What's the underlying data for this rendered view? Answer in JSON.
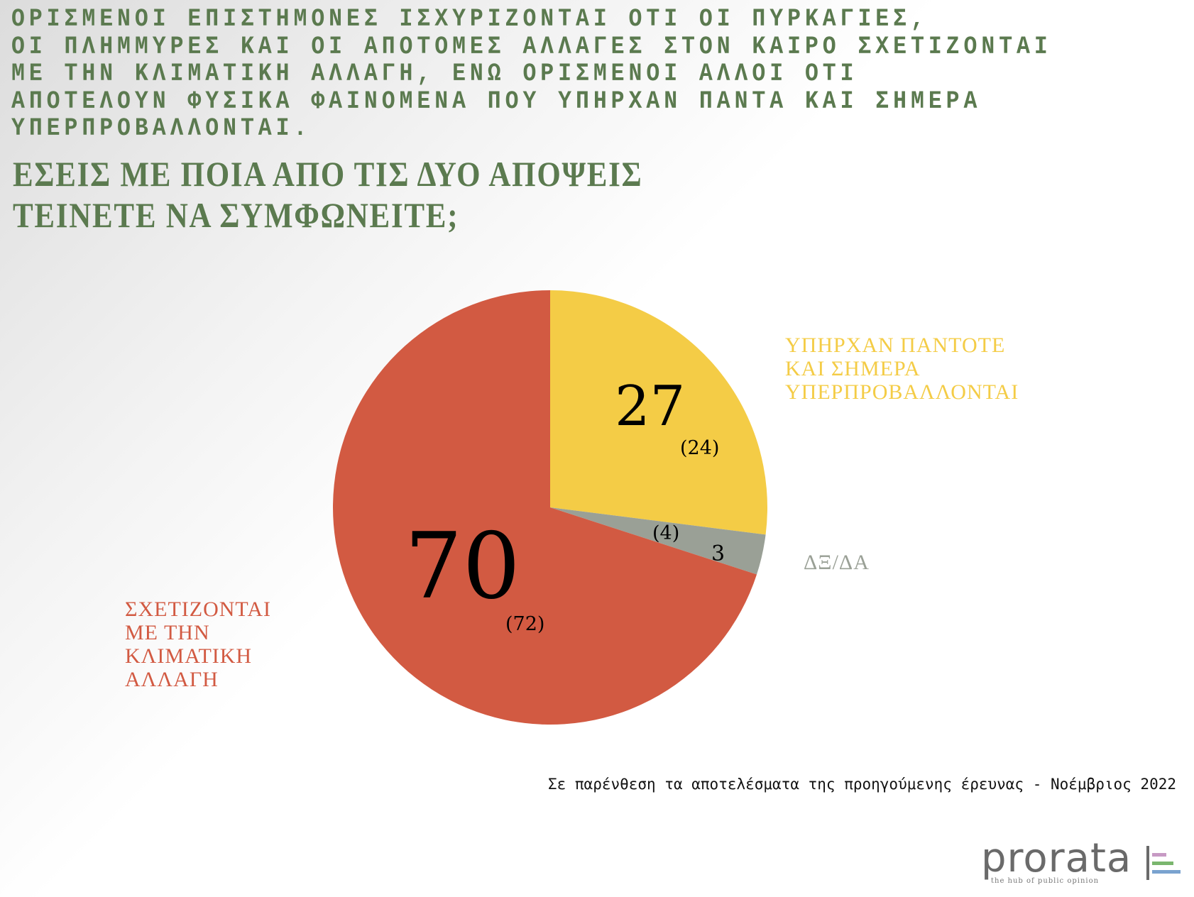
{
  "question_text": "ΟΡΙΣΜΕΝΟΙ ΕΠΙΣΤΗΜΟΝΕΣ ΙΣΧΥΡΙΖΟΝΤΑΙ ΟΤΙ ΟΙ ΠΥΡΚΑΓΙΕΣ,\nΟΙ ΠΛΗΜΜΥΡΕΣ ΚΑΙ ΟΙ ΑΠΟΤΟΜΕΣ ΑΛΛΑΓΕΣ ΣΤΟΝ ΚΑΙΡΟ ΣΧΕΤΙΖΟΝΤΑΙ\nΜΕ ΤΗΝ ΚΛΙΜΑΤΙΚΗ ΑΛΛΑΓΗ, ΕΝΩ ΟΡΙΣΜΕΝΟΙ ΑΛΛΟΙ ΟΤΙ\nΑΠΟΤΕΛΟΥΝ ΦΥΣΙΚΑ ΦΑΙΝΟΜΕΝΑ ΠΟΥ ΥΠΗΡΧΑΝ ΠΑΝΤΑ ΚΑΙ ΣΗΜΕΡΑ\nΥΠΕΡΠΡΟΒΑΛΛΟΝΤΑΙ.",
  "question_ask": "ΕΣΕΙΣ ΜΕ ΠΟΙΑ ΑΠΟ ΤΙΣ ΔΥΟ ΑΠΟΨΕΙΣ\nΤΕΙΝΕΤΕ ΝΑ ΣΥΜΦΩΝΕΙΤΕ;",
  "chart_data": {
    "type": "pie",
    "slices": [
      {
        "label": "ΥΠΗΡΧΑΝ ΠΑΝΤΟΤΕ\nΚΑΙ ΣΗΜΕΡΑ\nΥΠΕΡΠΡΟΒΑΛΛΟΝΤΑΙ",
        "value": 27,
        "value_text": "27",
        "previous": 24,
        "previous_text": "(24)",
        "color": "#f4cc46"
      },
      {
        "label": "ΔΞ/ΔΑ",
        "value": 3,
        "value_text": "3",
        "previous": 4,
        "previous_text": "(4)",
        "color": "#9aa096"
      },
      {
        "label": "ΣΧΕΤΙΖΟΝΤΑΙ\nΜΕ ΤΗΝ\nΚΛΙΜΑΤΙΚΗ\nΑΛΛΑΓΗ",
        "value": 70,
        "value_text": "70",
        "previous": 72,
        "previous_text": "(72)",
        "color": "#d25a42"
      }
    ],
    "start": "12 o'clock",
    "direction": "clockwise",
    "label_colors": [
      "#f4cc46",
      "#9aa096",
      "#d25a42"
    ]
  },
  "footnote": "Σε παρένθεση τα αποτελέσματα της προηγούμενης έρευνας - Νοέμβριος 2022",
  "logo": {
    "word": "prorata",
    "tagline": "the hub of public opinion",
    "bar_colors": [
      "#c79ac4",
      "#7ab66e",
      "#7aa3cf"
    ]
  }
}
